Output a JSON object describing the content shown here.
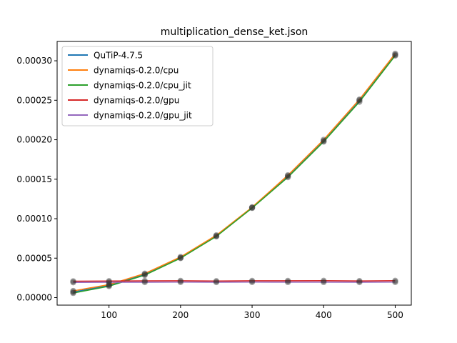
{
  "chart_data": {
    "type": "line",
    "title": "multiplication_dense_ket.json",
    "xlabel": "",
    "ylabel": "",
    "xlim": [
      27.5,
      522.5
    ],
    "ylim": [
      -9.5e-06,
      0.0003245
    ],
    "xticks": [
      100,
      200,
      300,
      400,
      500
    ],
    "xtick_labels": [
      "100",
      "200",
      "300",
      "400",
      "500"
    ],
    "yticks": [
      0,
      5e-05,
      0.0001,
      0.00015,
      0.0002,
      0.00025,
      0.0003
    ],
    "ytick_labels": [
      "0.00000",
      "0.00005",
      "0.00010",
      "0.00015",
      "0.00020",
      "0.00025",
      "0.00030"
    ],
    "legend_position": "upper-left",
    "grid": false,
    "x": [
      50,
      100,
      150,
      200,
      250,
      300,
      350,
      400,
      450,
      500
    ],
    "series": [
      {
        "name": "QuTiP-4.7.5",
        "color": "#1f77b4",
        "values": [
          7e-06,
          1.55e-05,
          2.95e-05,
          5.05e-05,
          7.8e-05,
          0.000114,
          0.000154,
          0.0001985,
          0.00025,
          0.0003075
        ]
      },
      {
        "name": "dynamiqs-0.2.0/cpu",
        "color": "#ff7f0e",
        "values": [
          8.5e-06,
          1.65e-05,
          3.05e-05,
          5.15e-05,
          7.9e-05,
          0.0001145,
          0.000155,
          0.0002,
          0.000251,
          0.000309
        ]
      },
      {
        "name": "dynamiqs-0.2.0/cpu_jit",
        "color": "#2ca02c",
        "values": [
          5.8e-06,
          1.45e-05,
          2.85e-05,
          5e-05,
          7.75e-05,
          0.0001135,
          0.0001525,
          0.0001975,
          0.000248,
          0.0003065
        ]
      },
      {
        "name": "dynamiqs-0.2.0/gpu",
        "color": "#d62728",
        "values": [
          2.08e-05,
          2.1e-05,
          2.12e-05,
          2.13e-05,
          2.1e-05,
          2.13e-05,
          2.13e-05,
          2.14e-05,
          2.11e-05,
          2.14e-05
        ]
      },
      {
        "name": "dynamiqs-0.2.0/gpu_jit",
        "color": "#9467bd",
        "values": [
          1.93e-05,
          1.95e-05,
          1.95e-05,
          1.97e-05,
          1.95e-05,
          1.97e-05,
          1.96e-05,
          1.96e-05,
          1.95e-05,
          1.97e-05
        ]
      }
    ]
  }
}
